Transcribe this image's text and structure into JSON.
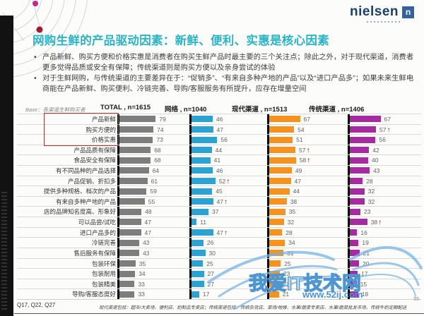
{
  "brand": {
    "logo_text": "nielsen",
    "logo_letter": "n",
    "logo_color": "#1b3f66"
  },
  "title": "网购生鲜的产品驱动因素：新鲜、便利、实惠是核心因素",
  "title_color": "#2bb3c6",
  "bullets": [
    "产品新鲜、购买方便和价格实惠是消费者在购买生鲜产品时最主要的三个关注点；除此之外，对于现代渠道，消费者更多觉得品质或安全有保障；传统渠道则是购买方便以及亲身尝试的体验",
    "对于生鲜网购，与传统渠道的主要差异在于：“促销多”、“有来自多种产地的产品”以及“进口产品多”；如果未来生鲜电商能在产品新鲜、购买便利、冷链完善、导购/客服服务有所提升，应存在增量空间"
  ],
  "base_note": "Base：各渠道生鲜购买者",
  "chart_data": {
    "type": "bar",
    "orientation": "horizontal",
    "xlim": [
      0,
      100
    ],
    "grid": "row-separators",
    "highlight_box_rows": [
      0,
      1,
      2
    ],
    "arrow_color": "#c00000",
    "categories": [
      "产品新鲜",
      "购买方便的",
      "价格实惠",
      "产品品质有保障",
      "食品安全有保障",
      "有不同品种的产品选择",
      "产品促销、折扣多",
      "提供多种规格、档次的产品",
      "有来自多种产地的产品",
      "店的品牌知名度高、形象好",
      "可以品尝/试吃",
      "进口产品多的",
      "冷链完善",
      "售后服务有保障",
      "包装环保",
      "包装耐用",
      "包装精美",
      "导购/客服态度好"
    ],
    "series": [
      {
        "name": "TOTAL , n=1615",
        "color": "#7d7d7d",
        "values": [
          79,
          74,
          73,
          68,
          68,
          64,
          61,
          59,
          55,
          48,
          47,
          47,
          43,
          43,
          35,
          34,
          33,
          33
        ],
        "arrow_rows": []
      },
      {
        "name": "网络 , n=1040",
        "color": "#2aa3d4",
        "values": [
          46,
          47,
          56,
          44,
          41,
          46,
          52,
          45,
          47,
          37,
          11,
          47,
          26,
          30,
          25,
          27,
          27,
          17
        ],
        "arrow_rows": [
          6,
          8,
          11
        ]
      },
      {
        "name": "现代渠道 , n=1513",
        "color": "#f6921e",
        "values": [
          67,
          54,
          51,
          57,
          58,
          49,
          47,
          44,
          38,
          35,
          32,
          28,
          34,
          31,
          25,
          23,
          22,
          21
        ],
        "arrow_rows": [
          3,
          4
        ]
      },
      {
        "name": "传统渠道 , n=1406",
        "color": "#a62ba0",
        "values": [
          67,
          57,
          56,
          42,
          40,
          43,
          28,
          32,
          32,
          23,
          38,
          16,
          19,
          21,
          20,
          17,
          15,
          18
        ],
        "arrow_rows": [
          1,
          10
        ]
      }
    ]
  },
  "footer": {
    "questions": "Q17, Q22, Q27",
    "note": "现代渠道包括：超市/大卖场、便利店、奶制品专卖店；传统渠道包括：传统杂货店、菜场/地摊、水果/蔬菜专卖店、水果/蔬菜批发市场、传统牛奶定期配送",
    "page_number": "55"
  },
  "watermark": {
    "line1": "我爱IT技术网",
    "line2": "www.52ij.com",
    "color": "#4f95cf"
  }
}
